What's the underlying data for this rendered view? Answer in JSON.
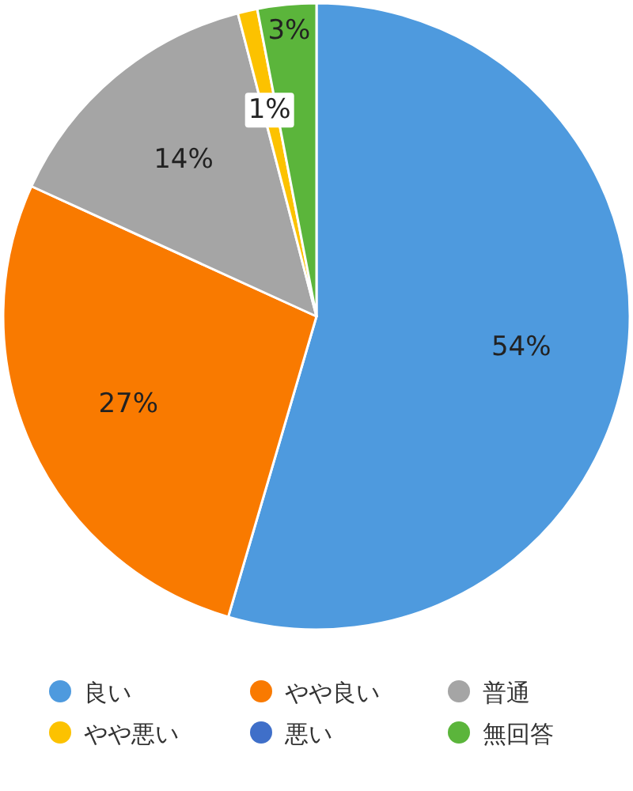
{
  "chart_data": {
    "type": "pie",
    "categories": [
      "良い",
      "やや良い",
      "普通",
      "やや悪い",
      "悪い",
      "無回答"
    ],
    "values": [
      54,
      27,
      14,
      1,
      0,
      3
    ],
    "colors": [
      "#4e9ade",
      "#f97a00",
      "#a5a5a5",
      "#fcc200",
      "#3f6fc9",
      "#5bb53b"
    ],
    "value_labels": [
      "54%",
      "27%",
      "14%",
      "1%",
      null,
      "3%"
    ],
    "legend": "bottom"
  }
}
